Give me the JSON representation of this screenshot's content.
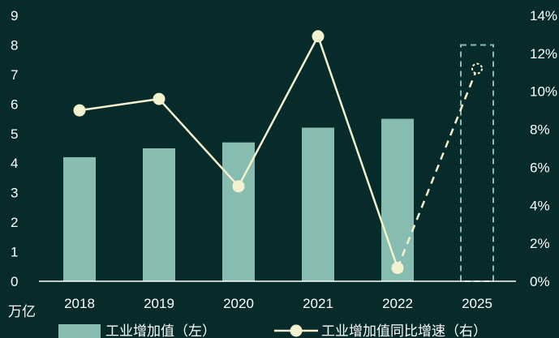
{
  "chart_data": {
    "type": "bar",
    "categories": [
      "2018",
      "2019",
      "2020",
      "2021",
      "2022",
      "2025"
    ],
    "series": [
      {
        "name": "工业增加值（左）",
        "type": "bar",
        "axis": "left",
        "values": [
          4.2,
          4.5,
          4.7,
          5.2,
          5.5,
          null
        ],
        "color": "#86bdb0"
      },
      {
        "name": "工业增加值同比增速（右）",
        "type": "line",
        "axis": "right",
        "values": [
          9.0,
          9.6,
          5.0,
          12.9,
          0.7,
          11.2
        ],
        "projected_from_index": 4,
        "color": "#f3f2cf"
      }
    ],
    "projection_box": {
      "category": "2025",
      "value_top": 8,
      "style": "dashed",
      "color": "#86bdb0"
    },
    "y_left": {
      "unit": "万亿",
      "ylim": [
        0,
        9
      ],
      "ticks": [
        "0",
        "1",
        "2",
        "3",
        "4",
        "5",
        "6",
        "7",
        "8",
        "9"
      ]
    },
    "y_right": {
      "ylim": [
        0,
        14
      ],
      "ticks": [
        "0%",
        "2%",
        "4%",
        "6%",
        "8%",
        "10%",
        "12%",
        "14%"
      ],
      "tick_values": [
        0,
        2,
        4,
        6,
        8,
        10,
        12,
        14
      ]
    },
    "legend": {
      "position": "bottom",
      "entries": [
        "工业增加值（左）",
        "工业增加值同比增速（右）"
      ]
    },
    "grid": false,
    "colors": {
      "background": "#072b2b",
      "axis": "#ffffff",
      "text": "#ffffff"
    }
  }
}
